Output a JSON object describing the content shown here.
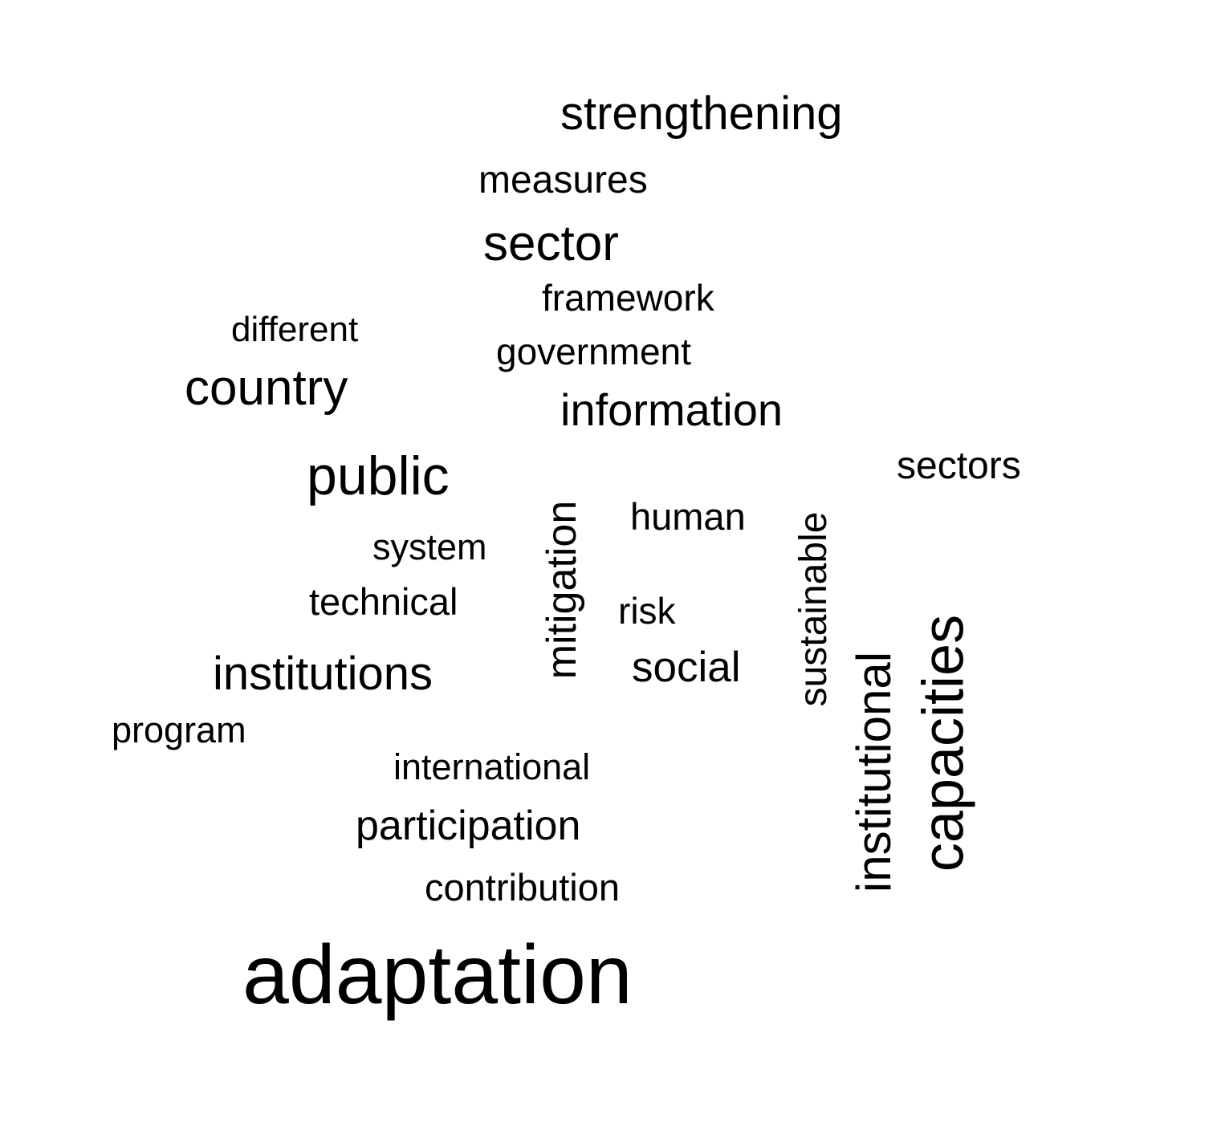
{
  "word_cloud": {
    "words": [
      {
        "text": "strengthening",
        "orientation": "horizontal"
      },
      {
        "text": "measures",
        "orientation": "horizontal"
      },
      {
        "text": "sector",
        "orientation": "horizontal"
      },
      {
        "text": "framework",
        "orientation": "horizontal"
      },
      {
        "text": "different",
        "orientation": "horizontal"
      },
      {
        "text": "government",
        "orientation": "horizontal"
      },
      {
        "text": "country",
        "orientation": "horizontal"
      },
      {
        "text": "information",
        "orientation": "horizontal"
      },
      {
        "text": "sectors",
        "orientation": "horizontal"
      },
      {
        "text": "public",
        "orientation": "horizontal"
      },
      {
        "text": "human",
        "orientation": "horizontal"
      },
      {
        "text": "system",
        "orientation": "horizontal"
      },
      {
        "text": "technical",
        "orientation": "horizontal"
      },
      {
        "text": "risk",
        "orientation": "horizontal"
      },
      {
        "text": "institutions",
        "orientation": "horizontal"
      },
      {
        "text": "social",
        "orientation": "horizontal"
      },
      {
        "text": "program",
        "orientation": "horizontal"
      },
      {
        "text": "international",
        "orientation": "horizontal"
      },
      {
        "text": "participation",
        "orientation": "horizontal"
      },
      {
        "text": "contribution",
        "orientation": "horizontal"
      },
      {
        "text": "adaptation",
        "orientation": "horizontal"
      },
      {
        "text": "mitigation",
        "orientation": "vertical"
      },
      {
        "text": "sustainable",
        "orientation": "vertical"
      },
      {
        "text": "institutional",
        "orientation": "vertical"
      },
      {
        "text": "capacities",
        "orientation": "vertical"
      }
    ],
    "text_color": "#000000",
    "background_color": "#ffffff"
  }
}
